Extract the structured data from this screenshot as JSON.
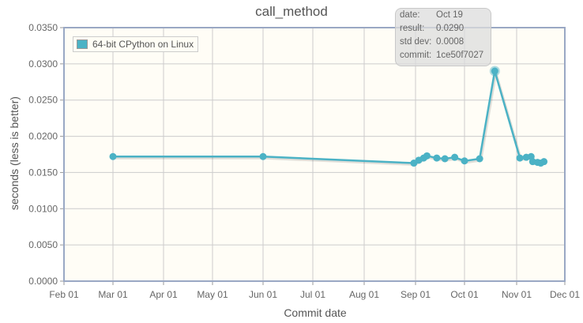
{
  "chart_data": {
    "type": "line",
    "title": "call_method",
    "xlabel": "Commit date",
    "ylabel": "seconds (less is better)",
    "ylim": [
      0,
      0.035
    ],
    "yticks": [
      "0.0000",
      "0.0050",
      "0.0100",
      "0.0150",
      "0.0200",
      "0.0250",
      "0.0300",
      "0.0350"
    ],
    "xticks": [
      "Feb 01",
      "Mar 01",
      "Apr 01",
      "May 01",
      "Jun 01",
      "Jul 01",
      "Aug 01",
      "Sep 01",
      "Oct 01",
      "Nov 01",
      "Dec 01"
    ],
    "grid": true,
    "legend_position": "top-left",
    "series": [
      {
        "name": "64-bit CPython on Linux",
        "color": "#4bb2c5",
        "points": [
          {
            "x": "Mar 01",
            "y": 0.0172
          },
          {
            "x": "Jun 01",
            "y": 0.0172
          },
          {
            "x": "Aug 31",
            "y": 0.0163
          },
          {
            "x": "Sep 03",
            "y": 0.0167
          },
          {
            "x": "Sep 06",
            "y": 0.017
          },
          {
            "x": "Sep 08",
            "y": 0.0173
          },
          {
            "x": "Sep 14",
            "y": 0.017
          },
          {
            "x": "Sep 19",
            "y": 0.0169
          },
          {
            "x": "Sep 25",
            "y": 0.0171
          },
          {
            "x": "Oct 01",
            "y": 0.0166
          },
          {
            "x": "Oct 10",
            "y": 0.0169
          },
          {
            "x": "Oct 19",
            "y": 0.029
          },
          {
            "x": "Nov 03",
            "y": 0.017
          },
          {
            "x": "Nov 07",
            "y": 0.0171
          },
          {
            "x": "Nov 10",
            "y": 0.0172
          },
          {
            "x": "Nov 11",
            "y": 0.0165
          },
          {
            "x": "Nov 14",
            "y": 0.0164
          },
          {
            "x": "Nov 16",
            "y": 0.0163
          },
          {
            "x": "Nov 18",
            "y": 0.0165
          }
        ]
      }
    ]
  },
  "tooltip": {
    "date_label": "date:",
    "date": "Oct 19",
    "result_label": "result:",
    "result": "0.0290",
    "std_label": "std dev:",
    "std": "0.0008",
    "commit_label": "commit:",
    "commit": "1ce50f7027"
  },
  "colors": {
    "plot_bg": "#fffdf6",
    "grid": "#cccccc",
    "axis": "#9aa8c4",
    "series": "#4bb2c5"
  }
}
